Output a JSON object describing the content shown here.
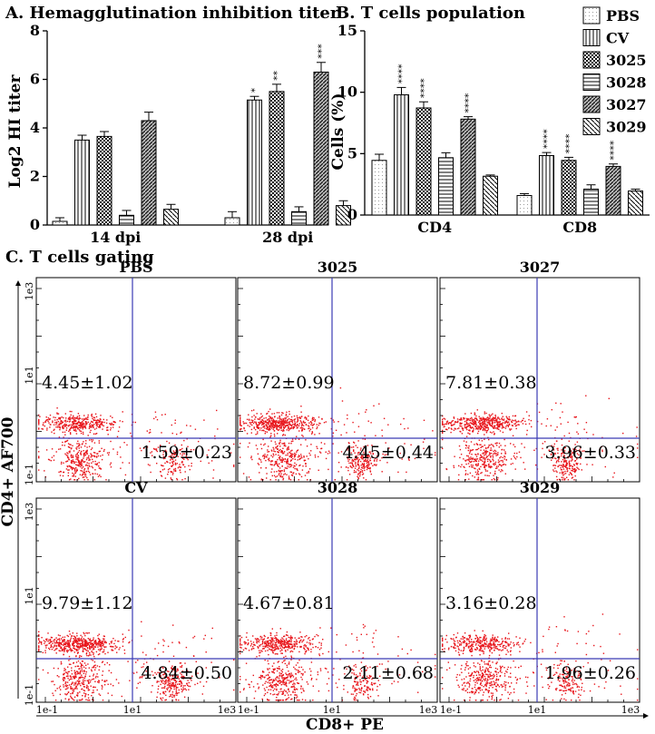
{
  "chart_data": [
    {
      "type": "bar",
      "title": "A. Hemagglutination inhibition titer",
      "xlabel": "",
      "ylabel": "Log2 HI titer",
      "ylim": [
        0,
        8
      ],
      "yticks": [
        "0",
        "2",
        "4",
        "6",
        "8"
      ],
      "categories": [
        "14 dpi",
        "28 dpi"
      ],
      "series": [
        {
          "name": "PBS",
          "values": [
            0.15,
            0.3
          ],
          "errors": [
            0.15,
            0.25
          ],
          "sig": [
            "",
            ""
          ]
        },
        {
          "name": "CV",
          "values": [
            3.5,
            5.15
          ],
          "errors": [
            0.2,
            0.15
          ],
          "sig": [
            "",
            "*"
          ]
        },
        {
          "name": "3025",
          "values": [
            3.65,
            5.5
          ],
          "errors": [
            0.2,
            0.3
          ],
          "sig": [
            "",
            "**"
          ]
        },
        {
          "name": "3028",
          "values": [
            0.4,
            0.55
          ],
          "errors": [
            0.2,
            0.2
          ],
          "sig": [
            "",
            ""
          ]
        },
        {
          "name": "3027",
          "values": [
            4.3,
            6.3
          ],
          "errors": [
            0.35,
            0.4
          ],
          "sig": [
            "",
            "***"
          ]
        },
        {
          "name": "3029",
          "values": [
            0.65,
            0.8
          ],
          "errors": [
            0.2,
            0.2
          ],
          "sig": [
            "",
            ""
          ]
        }
      ]
    },
    {
      "type": "bar",
      "title": "B. T cells population",
      "xlabel": "",
      "ylabel": "Cells (%)",
      "ylim": [
        0,
        15
      ],
      "yticks": [
        "0",
        "5",
        "10",
        "15"
      ],
      "categories": [
        "CD4",
        "CD8"
      ],
      "series": [
        {
          "name": "PBS",
          "values": [
            4.45,
            1.59
          ],
          "errors": [
            0.5,
            0.15
          ],
          "sig": [
            "",
            ""
          ]
        },
        {
          "name": "CV",
          "values": [
            9.79,
            4.84
          ],
          "errors": [
            0.6,
            0.25
          ],
          "sig": [
            "****",
            "****"
          ]
        },
        {
          "name": "3025",
          "values": [
            8.72,
            4.45
          ],
          "errors": [
            0.5,
            0.25
          ],
          "sig": [
            "****",
            "****"
          ]
        },
        {
          "name": "3028",
          "values": [
            4.67,
            2.11
          ],
          "errors": [
            0.4,
            0.35
          ],
          "sig": [
            "",
            ""
          ]
        },
        {
          "name": "3027",
          "values": [
            7.81,
            3.96
          ],
          "errors": [
            0.2,
            0.2
          ],
          "sig": [
            "****",
            "****"
          ]
        },
        {
          "name": "3029",
          "values": [
            3.16,
            1.96
          ],
          "errors": [
            0.1,
            0.15
          ],
          "sig": [
            "",
            ""
          ]
        }
      ],
      "legend": [
        "PBS",
        "CV",
        "3025",
        "3028",
        "3027",
        "3029"
      ]
    },
    {
      "type": "scatter",
      "title": "C. T cells gating",
      "xlabel": "CD8+ PE",
      "ylabel": "CD4+ AF700",
      "x_ticks": [
        "1e-1",
        "1e1",
        "1e3"
      ],
      "y_ticks": [
        "1e-1",
        "1e1",
        "1e3"
      ],
      "panels": [
        {
          "name": "PBS",
          "upper_left": "4.45±1.02",
          "lower_right": "1.59±0.23"
        },
        {
          "name": "3025",
          "upper_left": "8.72±0.99",
          "lower_right": "4.45±0.44"
        },
        {
          "name": "3027",
          "upper_left": "7.81±0.38",
          "lower_right": "3.96±0.33"
        },
        {
          "name": "CV",
          "upper_left": "9.79±1.12",
          "lower_right": "4.84±0.50"
        },
        {
          "name": "3028",
          "upper_left": "4.67±0.81",
          "lower_right": "2.11±0.68"
        },
        {
          "name": "3029",
          "upper_left": "3.16±0.28",
          "lower_right": "1.96±0.26"
        }
      ]
    }
  ],
  "colors": {
    "dot": "#e8151b",
    "gate": "#3b3bb5",
    "axis": "#000000"
  }
}
